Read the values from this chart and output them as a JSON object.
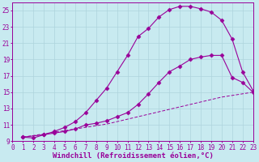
{
  "xlabel": "Windchill (Refroidissement éolien,°C)",
  "ylabel": "",
  "background_color": "#c8eaf0",
  "plot_bg_color": "#c8eaf0",
  "grid_color": "#aed4dc",
  "line_color": "#990099",
  "xlim": [
    0,
    23
  ],
  "ylim": [
    9,
    26
  ],
  "xticks": [
    0,
    1,
    2,
    3,
    4,
    5,
    6,
    7,
    8,
    9,
    10,
    11,
    12,
    13,
    14,
    15,
    16,
    17,
    18,
    19,
    20,
    21,
    22,
    23
  ],
  "yticks": [
    9,
    11,
    13,
    15,
    17,
    19,
    21,
    23,
    25
  ],
  "curve1_x": [
    1,
    2,
    3,
    4,
    5,
    6,
    7,
    8,
    9,
    10,
    11,
    12,
    13,
    14,
    15,
    16,
    17,
    18,
    19,
    20,
    21,
    22,
    23
  ],
  "curve1_y": [
    9.5,
    9.4,
    9.8,
    10.2,
    10.7,
    11.4,
    12.5,
    14.0,
    15.5,
    17.5,
    19.5,
    21.8,
    22.8,
    24.2,
    25.1,
    25.5,
    25.5,
    25.2,
    24.8,
    23.8,
    21.5,
    17.5,
    15.2
  ],
  "curve2_x": [
    1,
    3,
    4,
    5,
    6,
    7,
    8,
    9,
    10,
    11,
    12,
    13,
    14,
    15,
    16,
    17,
    18,
    19,
    20,
    21,
    22,
    23
  ],
  "curve2_y": [
    9.5,
    9.8,
    10.0,
    10.2,
    10.5,
    11.0,
    11.2,
    11.5,
    12.0,
    12.5,
    13.5,
    14.8,
    16.2,
    17.5,
    18.2,
    19.0,
    19.3,
    19.5,
    19.5,
    16.8,
    16.2,
    15.0
  ],
  "curve3_x": [
    1,
    2,
    3,
    4,
    5,
    6,
    7,
    8,
    9,
    10,
    11,
    12,
    13,
    14,
    15,
    16,
    17,
    18,
    19,
    20,
    21,
    22,
    23
  ],
  "curve3_y": [
    9.5,
    9.7,
    9.9,
    10.1,
    10.3,
    10.5,
    10.7,
    10.9,
    11.1,
    11.4,
    11.7,
    12.0,
    12.3,
    12.6,
    12.9,
    13.2,
    13.5,
    13.8,
    14.1,
    14.4,
    14.6,
    14.8,
    15.0
  ],
  "tick_fontsize": 5.5,
  "label_fontsize": 6.5,
  "marker": "D",
  "markersize": 2.5,
  "linewidth": 0.8
}
